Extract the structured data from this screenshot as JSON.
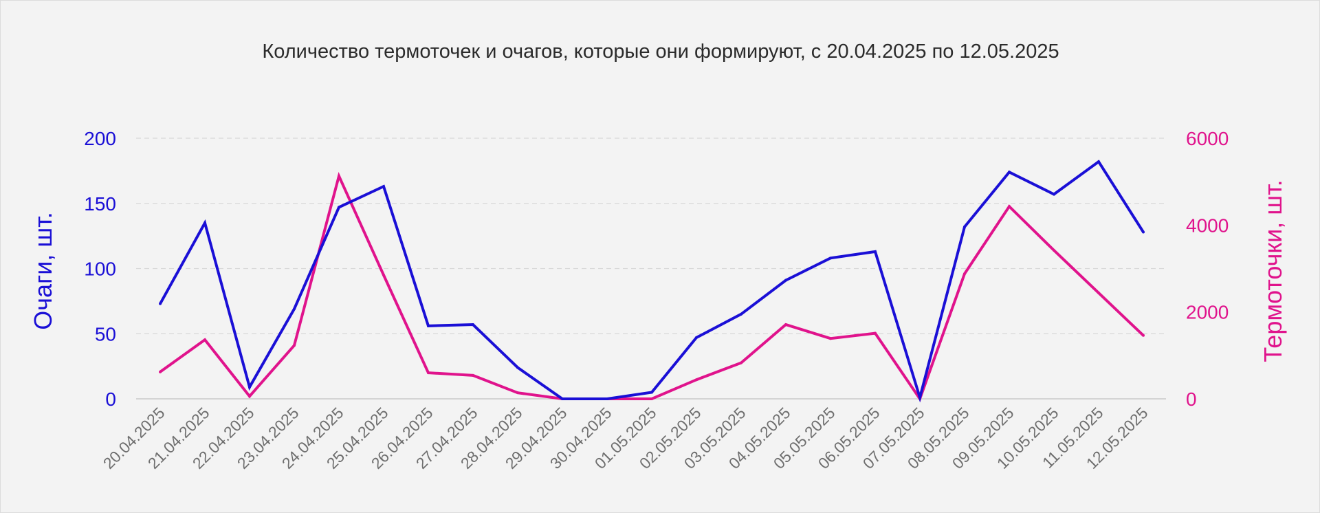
{
  "chart_data": {
    "type": "line",
    "title": "Количество термоточек и очагов, которые они формируют, с 20.04.2025 по 12.05.2025",
    "categories": [
      "20.04.2025",
      "21.04.2025",
      "22.04.2025",
      "23.04.2025",
      "24.04.2025",
      "25.04.2025",
      "26.04.2025",
      "27.04.2025",
      "28.04.2025",
      "29.04.2025",
      "30.04.2025",
      "01.05.2025",
      "02.05.2025",
      "03.05.2025",
      "04.05.2025",
      "05.05.2025",
      "06.05.2025",
      "07.05.2025",
      "08.05.2025",
      "09.05.2025",
      "10.05.2025",
      "11.05.2025",
      "12.05.2025"
    ],
    "series": [
      {
        "axis": "left",
        "color": "#1a0fd6",
        "values": [
          73,
          135,
          9,
          69,
          147,
          163,
          56,
          57,
          24,
          0,
          0,
          5,
          47,
          65,
          91,
          108,
          113,
          1,
          132,
          174,
          157,
          182,
          128
        ]
      },
      {
        "axis": "right",
        "color": "#e0138c",
        "values": [
          620,
          1360,
          60,
          1230,
          5130,
          2850,
          600,
          540,
          140,
          0,
          0,
          0,
          440,
          830,
          1710,
          1390,
          1510,
          0,
          2880,
          4430,
          3420,
          2440,
          1460
        ]
      }
    ],
    "y_left": {
      "label": "Очаги, шт.",
      "range": [
        0,
        200
      ],
      "ticks": [
        "0",
        "50",
        "100",
        "150",
        "200"
      ]
    },
    "y_right": {
      "label": "Термоточки, шт.",
      "range": [
        0,
        6000
      ],
      "ticks": [
        "0",
        "2000",
        "4000",
        "6000"
      ]
    },
    "grid": true,
    "legend": "none"
  }
}
